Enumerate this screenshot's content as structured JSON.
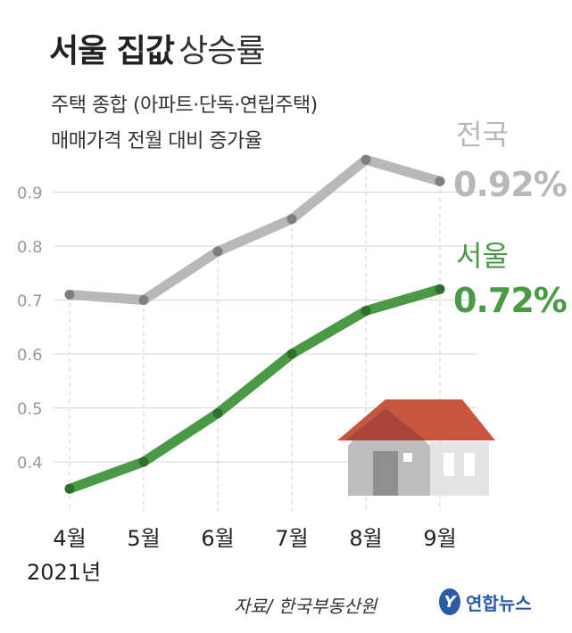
{
  "header": {
    "title_bold": "서울 집값",
    "title_light": "상승률",
    "subtitle_line1": "주택 종합 (아파트·단독·연립주택)",
    "subtitle_line2": "매매가격 전월 대비 증가율"
  },
  "chart_data": {
    "type": "line",
    "x": [
      "4월",
      "5월",
      "6월",
      "7월",
      "8월",
      "9월"
    ],
    "year_label": "2021년",
    "ylim": [
      0.33,
      1.0
    ],
    "y_ticks": [
      "0.4",
      "0.5",
      "0.6",
      "0.7",
      "0.8",
      "0.9"
    ],
    "grid": true,
    "series": [
      {
        "name": "전국",
        "values": [
          0.71,
          0.7,
          0.79,
          0.85,
          0.96,
          0.92
        ],
        "color": "#b8b8b8",
        "last_label": "0.92%"
      },
      {
        "name": "서울",
        "values": [
          0.35,
          0.4,
          0.49,
          0.6,
          0.68,
          0.72
        ],
        "color": "#4a9a45",
        "last_label": "0.72%"
      }
    ]
  },
  "footer": {
    "source": "자료/ 한국부동산원",
    "logo_text": "연합뉴스",
    "logo_icon": "yonhap-logo-icon"
  },
  "illustration": {
    "icon": "house-icon",
    "roof_color": "#c8553d",
    "wall_color": "#c8c8c8"
  }
}
